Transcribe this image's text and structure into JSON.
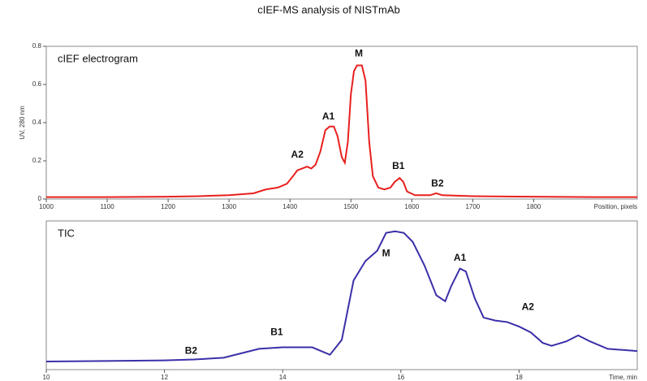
{
  "title": "cIEF-MS analysis of NISTmAb",
  "chart_data": [
    {
      "type": "line",
      "panel_label": "cIEF electrogram",
      "ylabel": "UV, 280 nm",
      "xlabel": "Position, pixels",
      "xlim": [
        1000,
        1970
      ],
      "ylim": [
        0,
        0.8
      ],
      "xticks": [
        1000,
        1100,
        1200,
        1300,
        1400,
        1500,
        1600,
        1700,
        1800
      ],
      "yticks": [
        0,
        0.2,
        0.4,
        0.6,
        0.8
      ],
      "x": [
        1000,
        1100,
        1200,
        1250,
        1300,
        1340,
        1360,
        1380,
        1395,
        1405,
        1412,
        1420,
        1428,
        1435,
        1442,
        1450,
        1458,
        1465,
        1472,
        1478,
        1485,
        1490,
        1495,
        1500,
        1505,
        1510,
        1518,
        1524,
        1530,
        1536,
        1545,
        1555,
        1565,
        1572,
        1580,
        1586,
        1592,
        1605,
        1630,
        1640,
        1650,
        1700,
        1800,
        1900,
        1970
      ],
      "series": [
        {
          "color": "#e8201e",
          "values": [
            0.01,
            0.01,
            0.012,
            0.015,
            0.02,
            0.03,
            0.05,
            0.06,
            0.08,
            0.12,
            0.15,
            0.16,
            0.17,
            0.16,
            0.18,
            0.25,
            0.36,
            0.38,
            0.38,
            0.33,
            0.22,
            0.19,
            0.3,
            0.55,
            0.67,
            0.7,
            0.7,
            0.62,
            0.3,
            0.12,
            0.06,
            0.05,
            0.06,
            0.09,
            0.11,
            0.09,
            0.04,
            0.02,
            0.02,
            0.03,
            0.02,
            0.015,
            0.012,
            0.01,
            0.01
          ]
        }
      ],
      "annotations": [
        {
          "text": "A2",
          "x": 1412,
          "y": 0.23
        },
        {
          "text": "A1",
          "x": 1463,
          "y": 0.43
        },
        {
          "text": "M",
          "x": 1513,
          "y": 0.76
        },
        {
          "text": "B1",
          "x": 1578,
          "y": 0.17
        },
        {
          "text": "B2",
          "x": 1642,
          "y": 0.08
        }
      ]
    },
    {
      "type": "line",
      "panel_label": "TIC",
      "xlabel": "Time, min",
      "xlim": [
        10,
        20
      ],
      "ylim": [
        0,
        100
      ],
      "xticks": [
        10,
        12,
        14,
        16,
        18
      ],
      "x": [
        10,
        11,
        12,
        12.5,
        13,
        13.3,
        13.6,
        14,
        14.5,
        14.8,
        15,
        15.1,
        15.2,
        15.4,
        15.6,
        15.75,
        15.9,
        16.05,
        16.2,
        16.4,
        16.6,
        16.75,
        16.85,
        17,
        17.1,
        17.25,
        17.4,
        17.6,
        17.8,
        18,
        18.2,
        18.4,
        18.55,
        18.8,
        19,
        19.2,
        19.5,
        20
      ],
      "series": [
        {
          "color": "#3a2fa8",
          "values": [
            5.5,
            5.8,
            6.2,
            6.8,
            8,
            11,
            14,
            15,
            15,
            10,
            20,
            40,
            60,
            73,
            80,
            92,
            93,
            92,
            86,
            70,
            50,
            46,
            56,
            68,
            66,
            48,
            35,
            33,
            32,
            29,
            25,
            18,
            16,
            19,
            23,
            19,
            14,
            12.5
          ]
        }
      ],
      "annotations": [
        {
          "text": "B2",
          "x": 12.45,
          "y": 12.5
        },
        {
          "text": "B1",
          "x": 13.9,
          "y": 25
        },
        {
          "text": "M",
          "x": 15.75,
          "y": 78
        },
        {
          "text": "A1",
          "x": 17.0,
          "y": 75
        },
        {
          "text": "A2",
          "x": 18.15,
          "y": 42
        }
      ]
    }
  ]
}
